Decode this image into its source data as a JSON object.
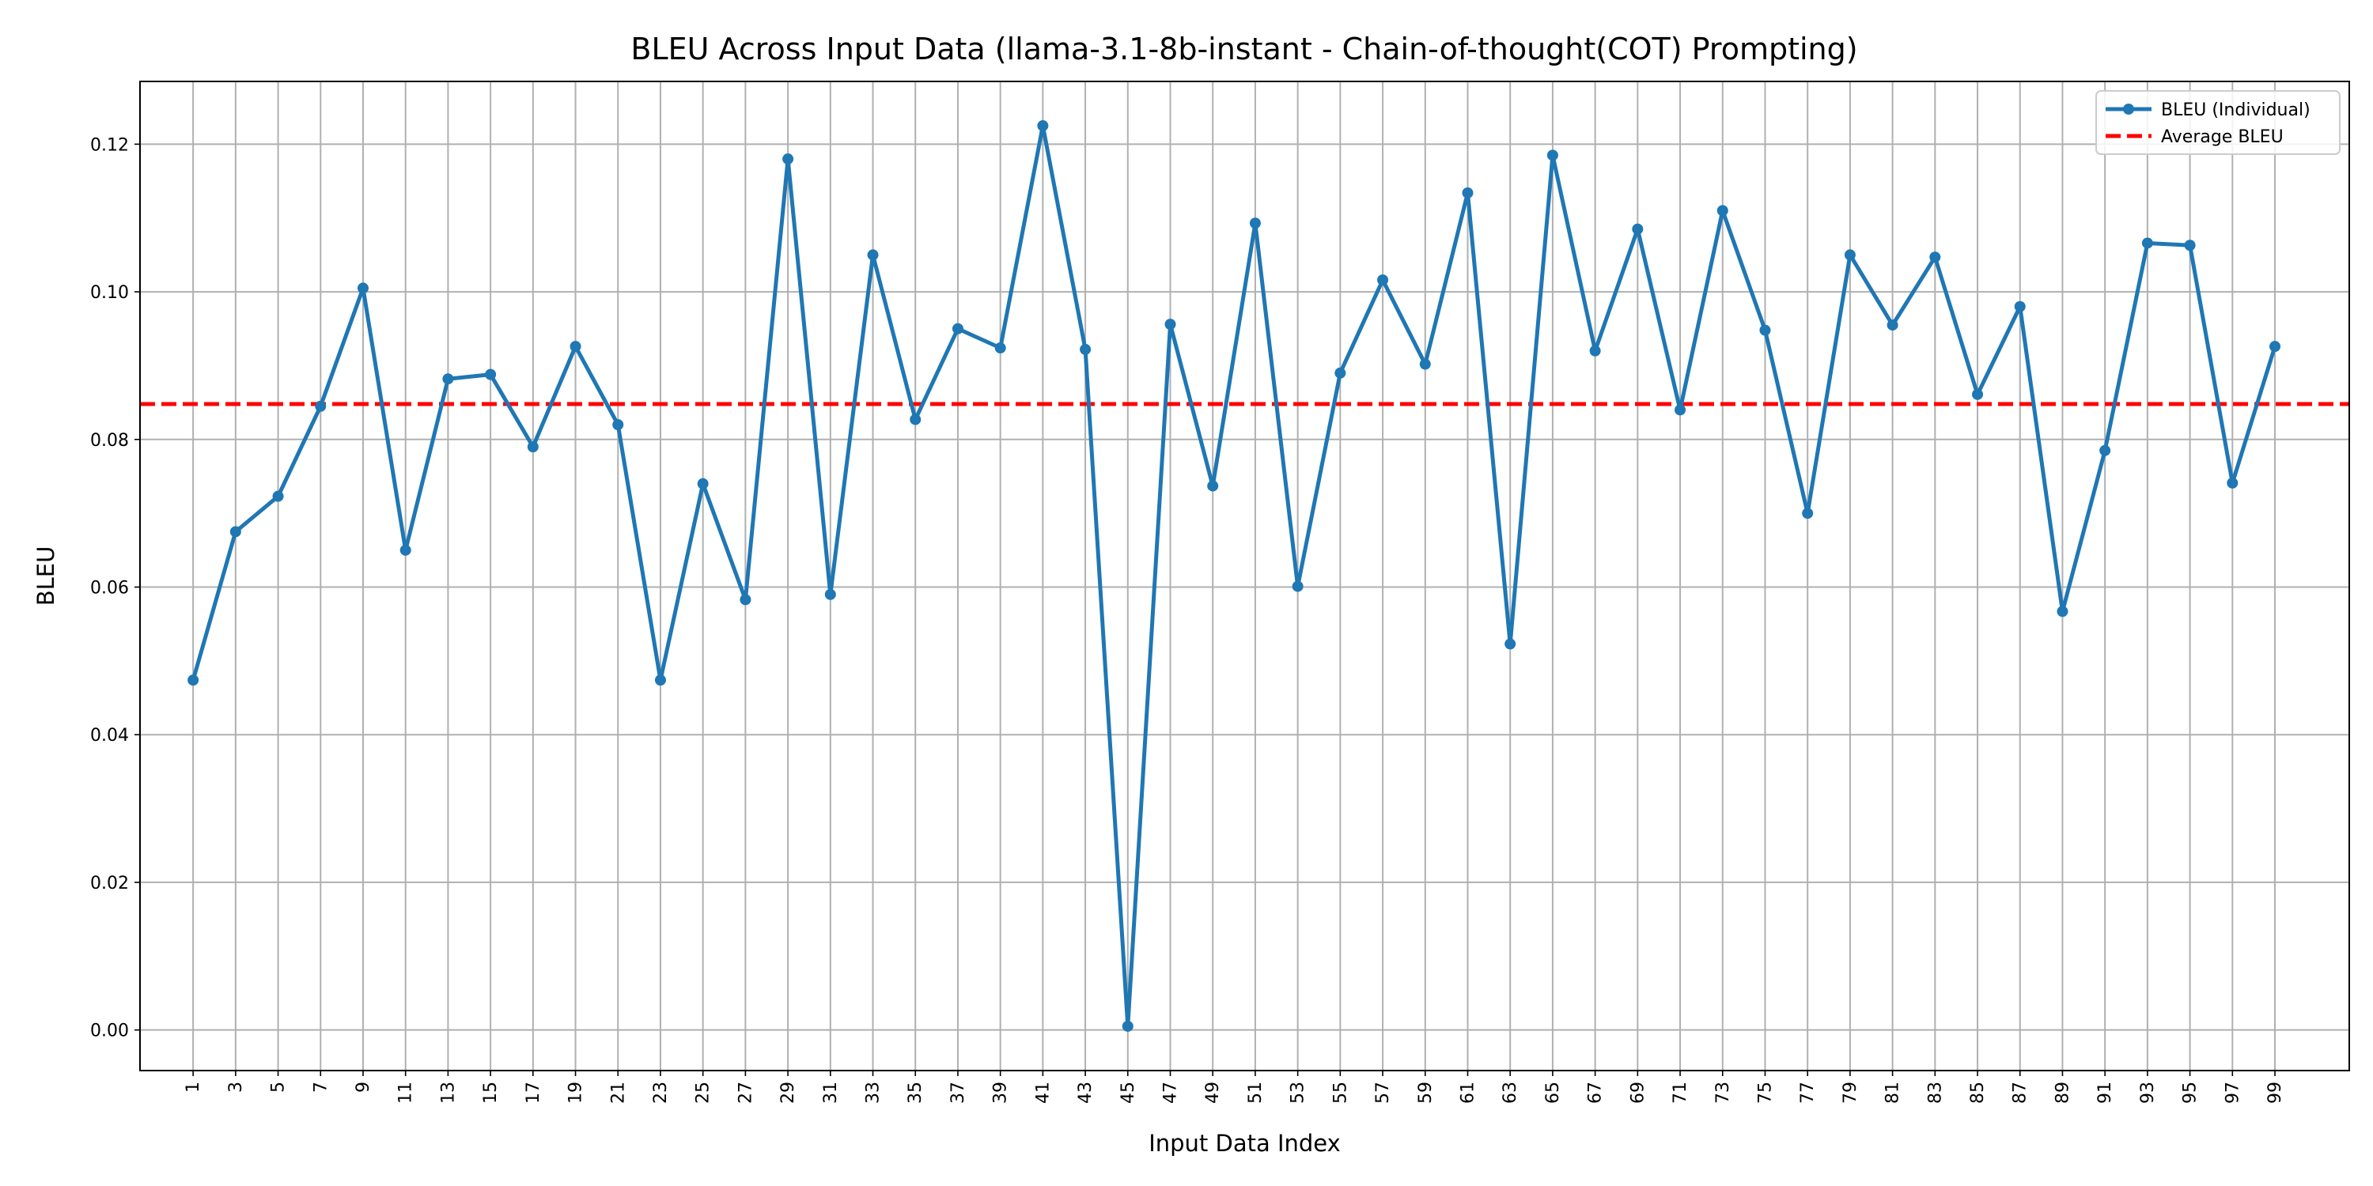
{
  "chart_data": {
    "type": "line",
    "title": "BLEU Across Input Data (llama-3.1-8b-instant - Chain-of-thought(COT) Prompting)",
    "xlabel": "Input Data Index",
    "ylabel": "BLEU",
    "xlim": [
      -1.5,
      102.5
    ],
    "ylim": [
      -0.0055,
      0.1285
    ],
    "y_ticks": [
      0.0,
      0.02,
      0.04,
      0.06,
      0.08,
      0.1,
      0.12
    ],
    "y_tick_labels": [
      "0.00",
      "0.02",
      "0.04",
      "0.06",
      "0.08",
      "0.10",
      "0.12"
    ],
    "x_ticks": [
      1,
      3,
      5,
      7,
      9,
      11,
      13,
      15,
      17,
      19,
      21,
      23,
      25,
      27,
      29,
      31,
      33,
      35,
      37,
      39,
      41,
      43,
      45,
      47,
      49,
      51,
      53,
      55,
      57,
      59,
      61,
      63,
      65,
      67,
      69,
      71,
      73,
      75,
      77,
      79,
      81,
      83,
      85,
      87,
      89,
      91,
      93,
      95,
      97,
      99
    ],
    "x_tick_labels": [
      "1",
      "3",
      "5",
      "7",
      "9",
      "11",
      "13",
      "15",
      "17",
      "19",
      "21",
      "23",
      "25",
      "27",
      "29",
      "31",
      "33",
      "35",
      "37",
      "39",
      "41",
      "43",
      "45",
      "47",
      "49",
      "51",
      "53",
      "55",
      "57",
      "59",
      "61",
      "63",
      "65",
      "67",
      "69",
      "71",
      "73",
      "75",
      "77",
      "79",
      "81",
      "83",
      "85",
      "87",
      "89",
      "91",
      "93",
      "95",
      "97",
      "99"
    ],
    "grid": true,
    "legend_position": "top-right",
    "series": [
      {
        "name": "BLEU (Individual)",
        "color": "#1f77b4",
        "style": "solid-with-markers",
        "x": [
          1,
          3,
          5,
          7,
          9,
          11,
          13,
          15,
          17,
          19,
          21,
          23,
          25,
          27,
          29,
          31,
          33,
          35,
          37,
          39,
          41,
          43,
          45,
          47,
          49,
          51,
          53,
          55,
          57,
          59,
          61,
          63,
          65,
          67,
          69,
          71,
          73,
          75,
          77,
          79,
          81,
          83,
          85,
          87,
          89,
          91,
          93,
          95,
          97,
          99
        ],
        "y": [
          0.0474,
          0.0675,
          0.0723,
          0.0845,
          0.1005,
          0.065,
          0.0882,
          0.0888,
          0.079,
          0.0926,
          0.082,
          0.0474,
          0.074,
          0.0583,
          0.118,
          0.059,
          0.105,
          0.0827,
          0.095,
          0.0924,
          0.1225,
          0.0922,
          0.0005,
          0.0956,
          0.0737,
          0.1093,
          0.0601,
          0.089,
          0.1016,
          0.0902,
          0.1134,
          0.0523,
          0.1185,
          0.092,
          0.1085,
          0.084,
          0.111,
          0.0948,
          0.07,
          0.105,
          0.0955,
          0.1047,
          0.0861,
          0.098,
          0.0567,
          0.0785,
          0.1066,
          0.1063,
          0.0741,
          0.0926
        ]
      },
      {
        "name": "Average BLEU",
        "color": "#ff0000",
        "style": "dashed",
        "value": 0.0848
      }
    ]
  }
}
